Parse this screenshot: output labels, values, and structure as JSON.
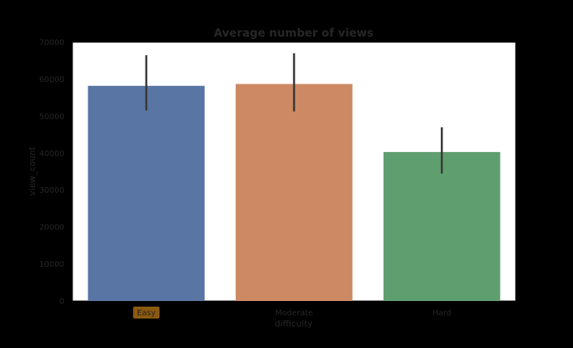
{
  "chart_data": {
    "type": "bar",
    "title": "Average number of views",
    "xlabel": "difficulty",
    "ylabel": "view_count",
    "categories": [
      "Easy",
      "Moderate",
      "Hard"
    ],
    "values": [
      58200,
      58700,
      40300
    ],
    "error_low": [
      51500,
      51300,
      34500
    ],
    "error_high": [
      66500,
      67000,
      47000
    ],
    "ylim": [
      0,
      70000
    ],
    "yticks": [
      0,
      10000,
      20000,
      30000,
      40000,
      50000,
      60000,
      70000
    ],
    "grid": false,
    "legend": "none",
    "colors": [
      "#5975a4",
      "#cc8963",
      "#5f9e6e"
    ],
    "errorbar_color": "#3a3a3a",
    "highlight_category": "Easy",
    "highlight_color": "#8b5a0f"
  }
}
